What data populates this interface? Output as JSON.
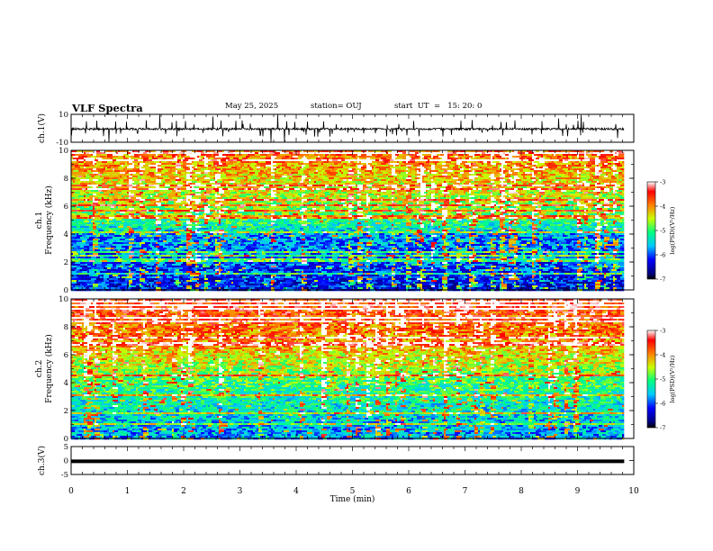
{
  "header": {
    "title": "VLF Spectra",
    "date": "May 25, 2025",
    "station": "station= OUJ",
    "start_ut": "start  UT  =   15: 20: 0"
  },
  "chart_data": [
    {
      "type": "line",
      "panel": "ch1-waveform",
      "ylabel": "ch.1(V)",
      "ylim": [
        -10,
        10
      ],
      "yticks": [
        "10",
        "-10"
      ],
      "x_range_min": [
        0,
        10
      ],
      "data_span_min": [
        0,
        9.83
      ]
    },
    {
      "type": "heatmap",
      "panel": "ch1-spectrogram",
      "ylabel": "ch.1",
      "ylabel2": "Frequency  (kHz)",
      "ylim": [
        0,
        10
      ],
      "yticks": [
        "0",
        "2",
        "4",
        "6",
        "8",
        "10"
      ],
      "x_range_min": [
        0,
        10
      ],
      "colorbar": {
        "label": "log(PSD)(V²/Hz)",
        "range": [
          -7,
          -3
        ],
        "ticks": [
          "-3",
          "-4",
          "-5",
          "-6",
          "-7"
        ]
      }
    },
    {
      "type": "heatmap",
      "panel": "ch2-spectrogram",
      "ylabel": "ch.2",
      "ylabel2": "Frequency  (kHz)",
      "ylim": [
        0,
        10
      ],
      "yticks": [
        "0",
        "2",
        "4",
        "6",
        "8",
        "10"
      ],
      "x_range_min": [
        0,
        10
      ],
      "colorbar": {
        "label": "log(PSD)(V²/Hz)",
        "range": [
          -7,
          -3
        ],
        "ticks": [
          "-3",
          "-4",
          "-5",
          "-6",
          "-7"
        ]
      }
    },
    {
      "type": "line",
      "panel": "ch3-waveform",
      "ylabel": "ch.3(V)",
      "ylim": [
        -5,
        5
      ],
      "yticks": [
        "5",
        "0",
        "-5"
      ],
      "x": [
        0,
        9.83
      ],
      "values": [
        -0.3,
        -0.3
      ]
    }
  ],
  "xaxis": {
    "label": "Time  (min)",
    "ticks": [
      "0",
      "1",
      "2",
      "3",
      "4",
      "5",
      "6",
      "7",
      "8",
      "9",
      "10"
    ]
  }
}
